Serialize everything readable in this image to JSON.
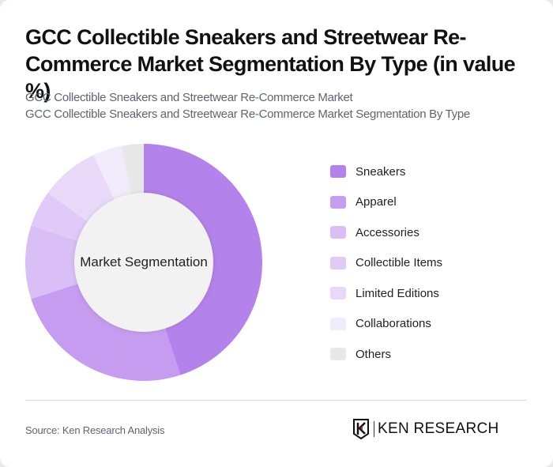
{
  "header": {
    "title": "GCC Collectible Sneakers and Streetwear Re-Commerce Market Segmentation By Type (in value %)",
    "subtitle_line1": "GCC Collectible Sneakers and Streetwear Re-Commerce Market",
    "subtitle_line2": "GCC Collectible Sneakers and Streetwear Re-Commerce Market Segmentation By Type"
  },
  "chart": {
    "center_label": "Market Segmentation"
  },
  "legend": [
    {
      "label": "Sneakers",
      "color": "#b382ea"
    },
    {
      "label": "Apparel",
      "color": "#c59cef"
    },
    {
      "label": "Accessories",
      "color": "#d9bff6"
    },
    {
      "label": "Collectible Items",
      "color": "#e1caf7"
    },
    {
      "label": "Limited Editions",
      "color": "#e8d9f9"
    },
    {
      "label": "Collaborations",
      "color": "#f2ebfc"
    },
    {
      "label": "Others",
      "color": "#e8e8e8"
    }
  ],
  "footer": {
    "source": "Source: Ken Research Analysis",
    "logo_text": "KEN RESEARCH"
  },
  "chart_data": {
    "type": "pie",
    "subtype": "donut",
    "title": "GCC Collectible Sneakers and Streetwear Re-Commerce Market Segmentation By Type (in value %)",
    "center_label": "Market Segmentation",
    "categories": [
      "Sneakers",
      "Apparel",
      "Accessories",
      "Collectible Items",
      "Limited Editions",
      "Collaborations",
      "Others"
    ],
    "values": [
      45,
      25,
      10,
      5,
      8,
      4,
      3
    ],
    "unit": "%",
    "colors": [
      "#b382ea",
      "#c59cef",
      "#d9bff6",
      "#e1caf7",
      "#e8d9f9",
      "#f2ebfc",
      "#e8e8e8"
    ],
    "legend_position": "right",
    "start_angle": "top, clockwise"
  }
}
